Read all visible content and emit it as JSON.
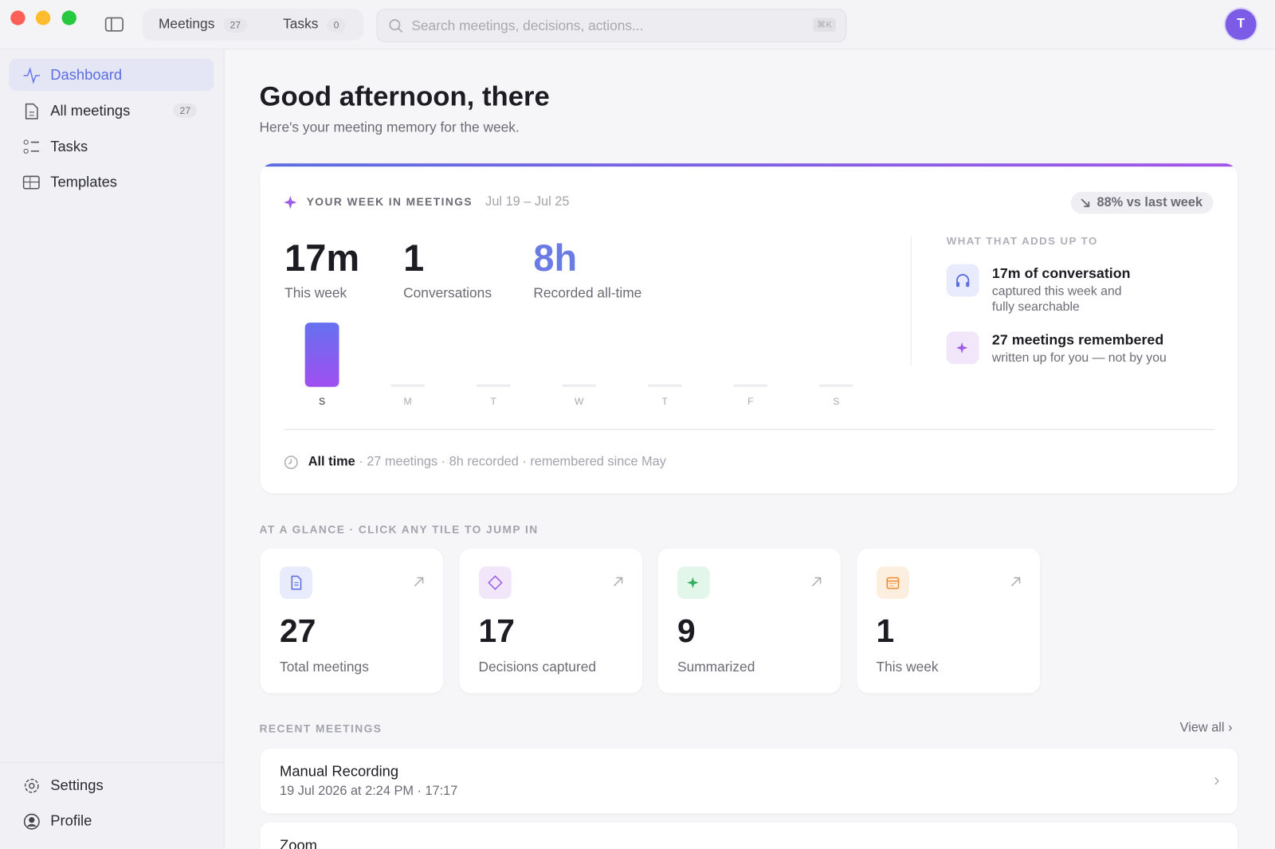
{
  "window": {
    "tabs": [
      {
        "label": "Meetings",
        "count": 27
      },
      {
        "label": "Tasks",
        "count": 0
      }
    ],
    "search_placeholder": "Search meetings, decisions, actions...",
    "search_shortcut": "⌘K",
    "avatar": "T"
  },
  "sidebar": {
    "nav": [
      {
        "label": "Dashboard"
      },
      {
        "label": "All meetings",
        "count": 27
      },
      {
        "label": "Tasks"
      },
      {
        "label": "Templates"
      }
    ],
    "footer": [
      "Settings",
      "Profile"
    ]
  },
  "header": {
    "title": "Good afternoon, there",
    "subtitle": "Here's your meeting memory for the week."
  },
  "week": {
    "label": "YOUR WEEK IN MEETINGS",
    "range": "Jul 19 – Jul 25",
    "trend": "88% vs last week",
    "stats": [
      {
        "value": "17m",
        "label": "This week"
      },
      {
        "value": "1",
        "label": "Conversations"
      },
      {
        "value": "8h",
        "label": "Recorded all-time"
      }
    ],
    "chart": {
      "days": [
        "S",
        "M",
        "T",
        "W",
        "T",
        "F",
        "S"
      ],
      "minutes": [
        17,
        0,
        0,
        0,
        0,
        0,
        0
      ]
    },
    "adds_up_title": "WHAT THAT ADDS UP TO",
    "adds_up": [
      {
        "title": "17m of conversation",
        "text": "captured this week and fully searchable"
      },
      {
        "title": "27 meetings remembered",
        "text": "written up for you — not by you"
      }
    ],
    "all_time_label": "All time",
    "all_time_text": "· 27 meetings · 8h recorded · remembered since May"
  },
  "glance": {
    "title": "AT A GLANCE · CLICK ANY TILE TO JUMP IN",
    "tiles": [
      {
        "value": 27,
        "label": "Total meetings"
      },
      {
        "value": 17,
        "label": "Decisions captured"
      },
      {
        "value": 9,
        "label": "Summarized"
      },
      {
        "value": 1,
        "label": "This week"
      }
    ]
  },
  "recent": {
    "title": "RECENT MEETINGS",
    "view_all": "View all",
    "meetings": [
      {
        "title": "Manual Recording",
        "meta": "19 Jul 2026 at 2:24 PM · 17:17"
      },
      {
        "title": "Zoom"
      }
    ]
  }
}
